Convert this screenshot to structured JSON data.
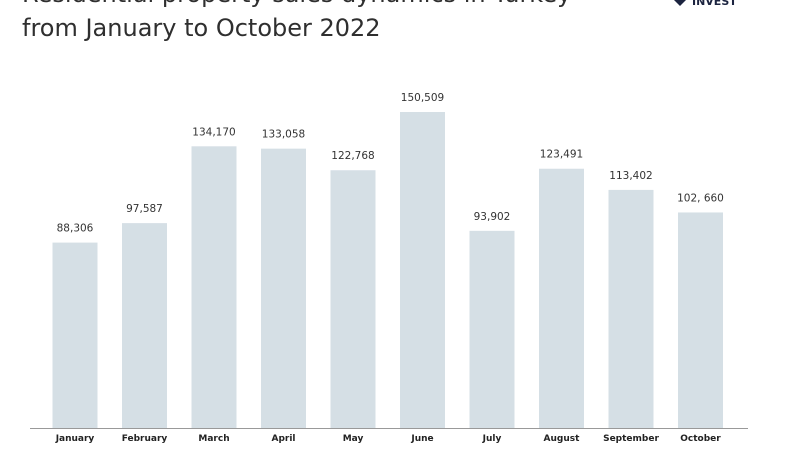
{
  "chart_data": {
    "type": "bar",
    "title": [
      "Residential property sales dynamics in Turkey",
      "from January to October 2022"
    ],
    "logo": "INVEST",
    "categories": [
      "January",
      "February",
      "March",
      "April",
      "May",
      "June",
      "July",
      "August",
      "September",
      "October"
    ],
    "values": [
      88306,
      97587,
      134170,
      133058,
      122768,
      150509,
      93902,
      123491,
      113402,
      102660
    ],
    "value_labels": [
      "88,306",
      "97,587",
      "134,170",
      "133,058",
      "122,768",
      "150,509",
      "93,902",
      "123,491",
      "113,402",
      "102, 660"
    ],
    "color": "#d5dfe5"
  }
}
